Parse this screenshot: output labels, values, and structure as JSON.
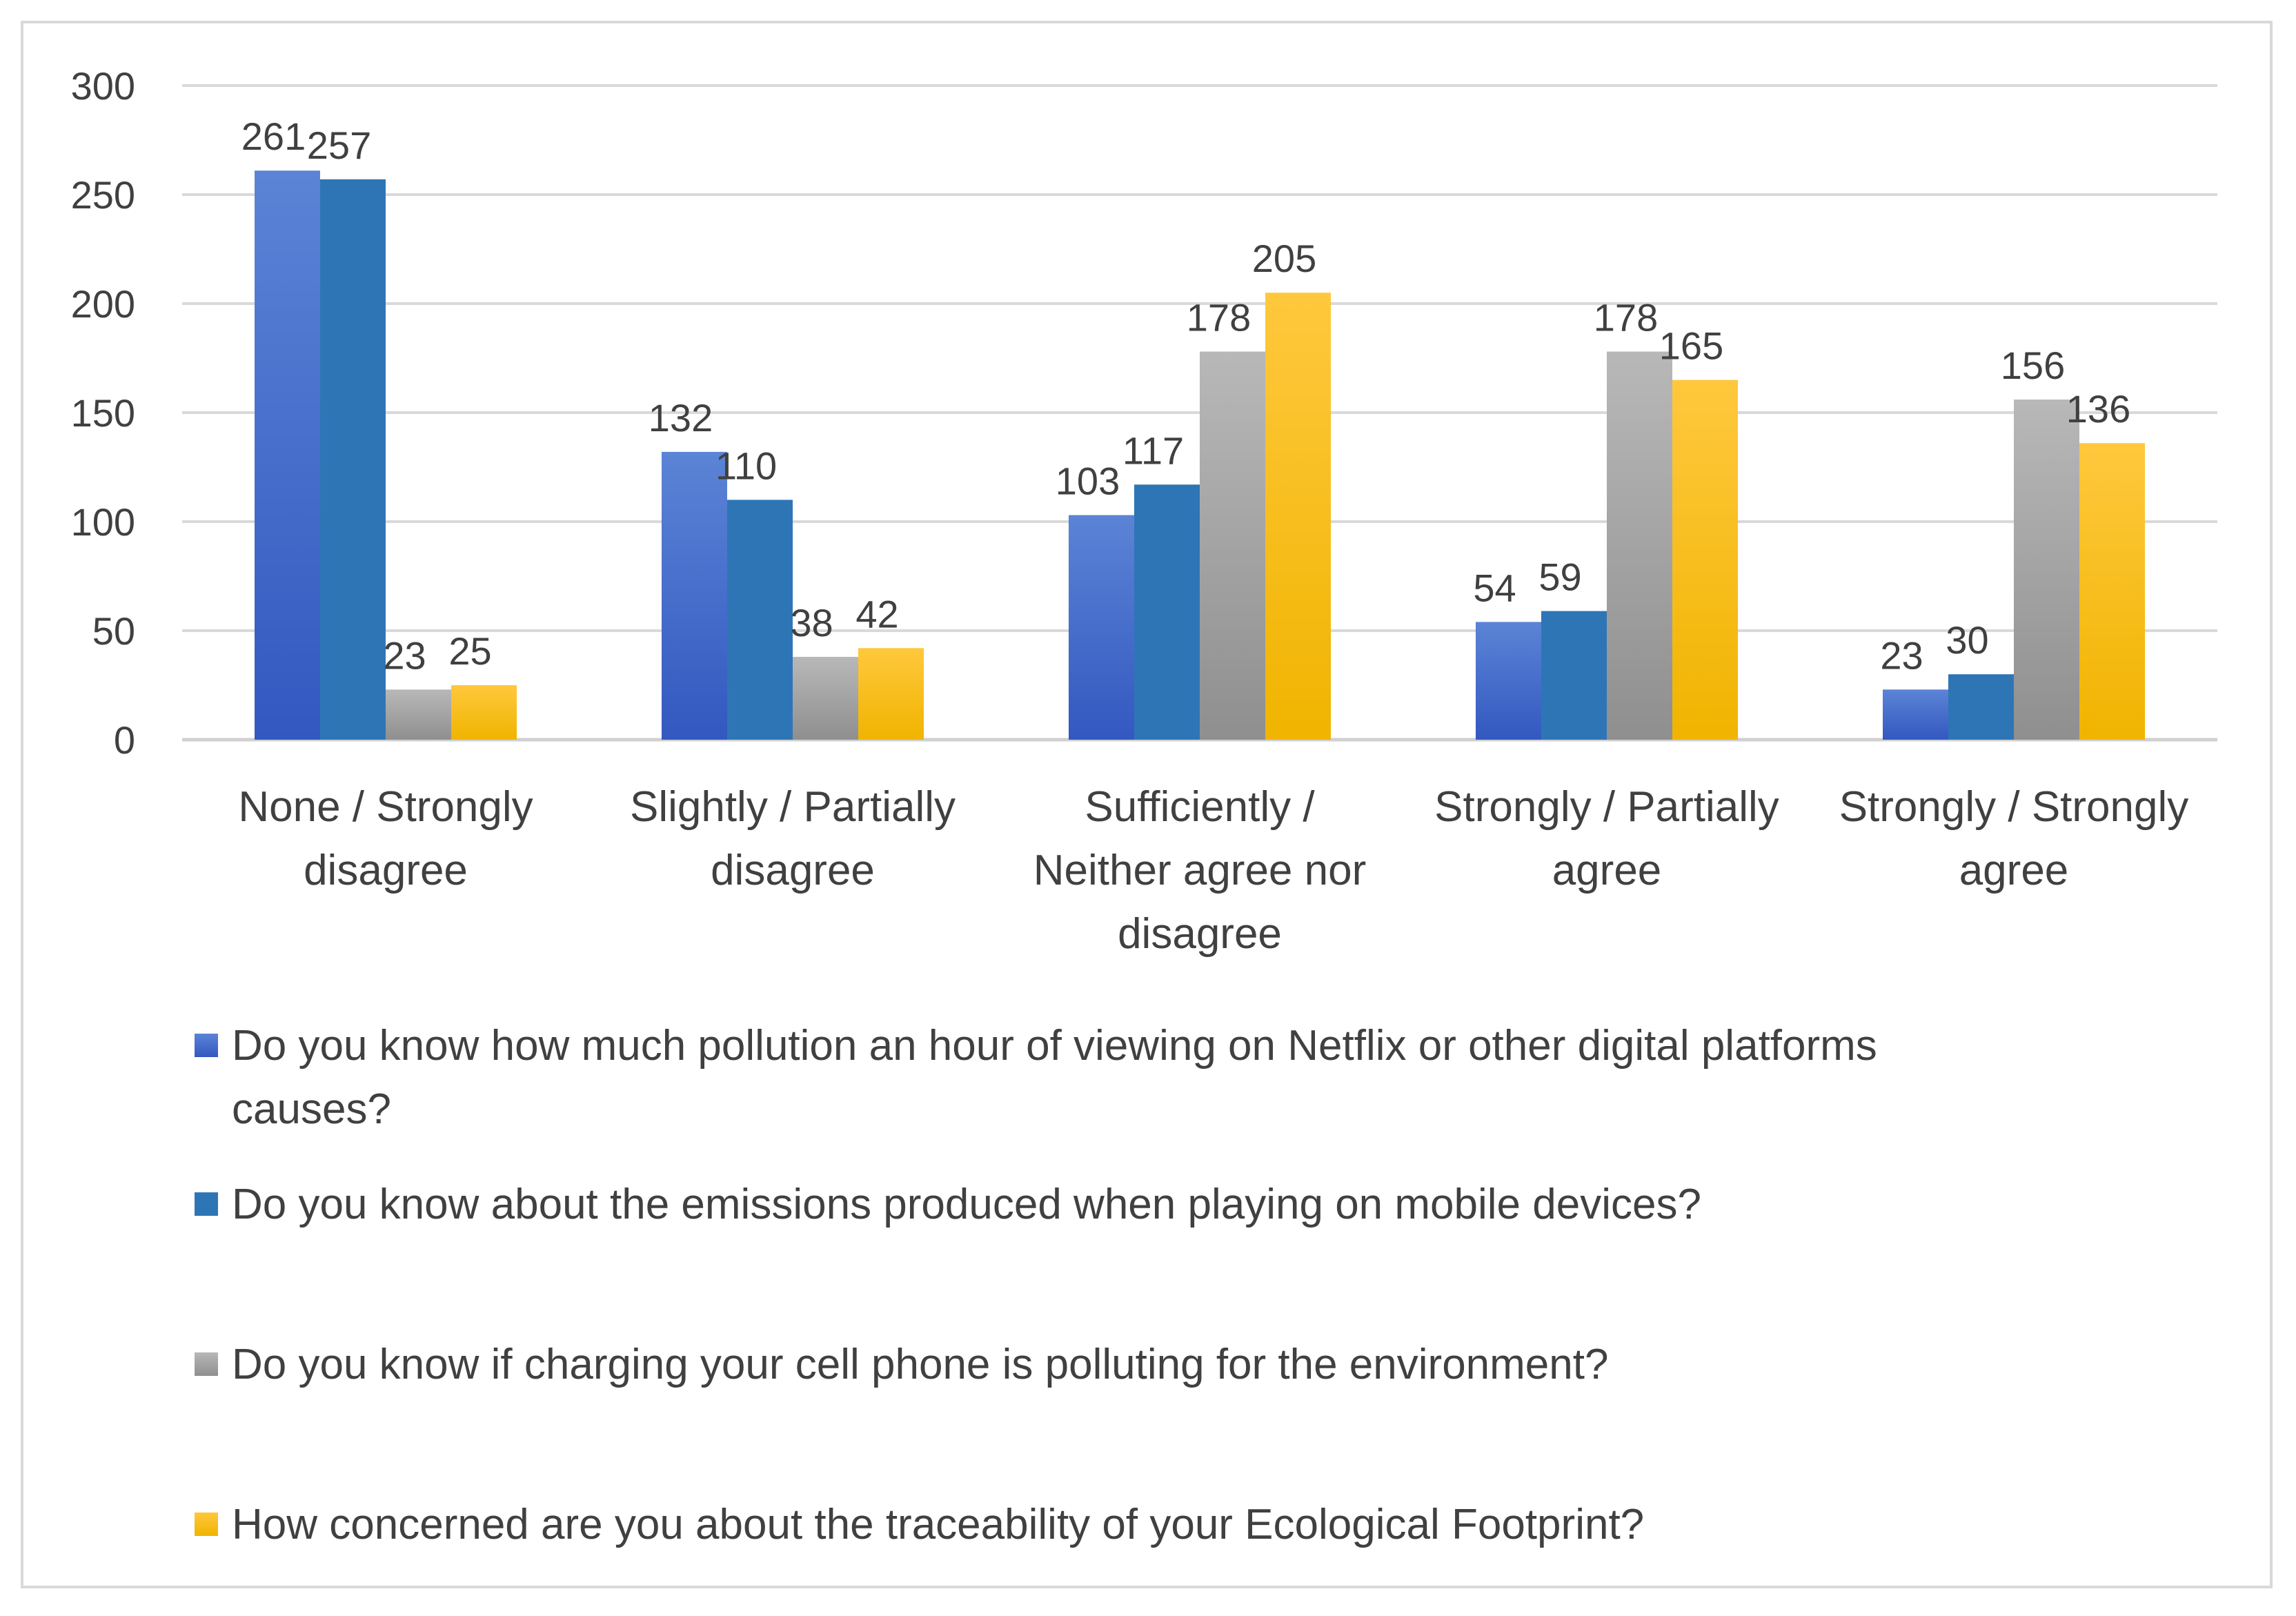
{
  "chart_data": {
    "type": "bar",
    "categories": [
      [
        "None / Strongly",
        "disagree"
      ],
      [
        "Slightly / Partially",
        "disagree"
      ],
      [
        "Sufficiently /",
        "Neither agree nor",
        "disagree"
      ],
      [
        "Strongly / Partially",
        "agree"
      ],
      [
        "Strongly / Strongly",
        "agree"
      ]
    ],
    "series": [
      {
        "name": "Do you know how much pollution an hour of viewing on Netflix or other digital platforms causes?",
        "color_top": "#5b84d6",
        "color_bottom": "#3358c0",
        "values": [
          261,
          132,
          103,
          54,
          23
        ]
      },
      {
        "name": "Do you know about the emissions produced when playing on mobile devices?",
        "color_top": "#2e75b6",
        "color_bottom": "#2e75b6",
        "values": [
          257,
          110,
          117,
          59,
          30
        ]
      },
      {
        "name": "Do you know if charging your cell phone is polluting for the environment?",
        "color_top": "#b8b8b8",
        "color_bottom": "#8f8f8f",
        "values": [
          23,
          38,
          178,
          178,
          156
        ]
      },
      {
        "name": "How concerned are you about the traceability of your Ecological Footprint?",
        "color_top": "#ffc83d",
        "color_bottom": "#f0b400",
        "values": [
          25,
          42,
          205,
          165,
          136
        ]
      }
    ],
    "ylim": [
      0,
      300
    ],
    "yticks": [
      0,
      50,
      100,
      150,
      200,
      250,
      300
    ],
    "grid": true,
    "legend_position": "bottom",
    "title": "",
    "xlabel": "",
    "ylabel": ""
  },
  "legend": {
    "items": [
      {
        "label_lines": [
          "Do you know how much pollution an hour of viewing on Netflix or other digital platforms",
          "causes?"
        ]
      },
      {
        "label_lines": [
          "Do you know about the emissions produced when playing on mobile devices?"
        ]
      },
      {
        "label_lines": [
          "Do you know if charging your cell phone is polluting for the environment?"
        ]
      },
      {
        "label_lines": [
          "How concerned are you about the traceability of your Ecological Footprint?"
        ]
      }
    ]
  }
}
